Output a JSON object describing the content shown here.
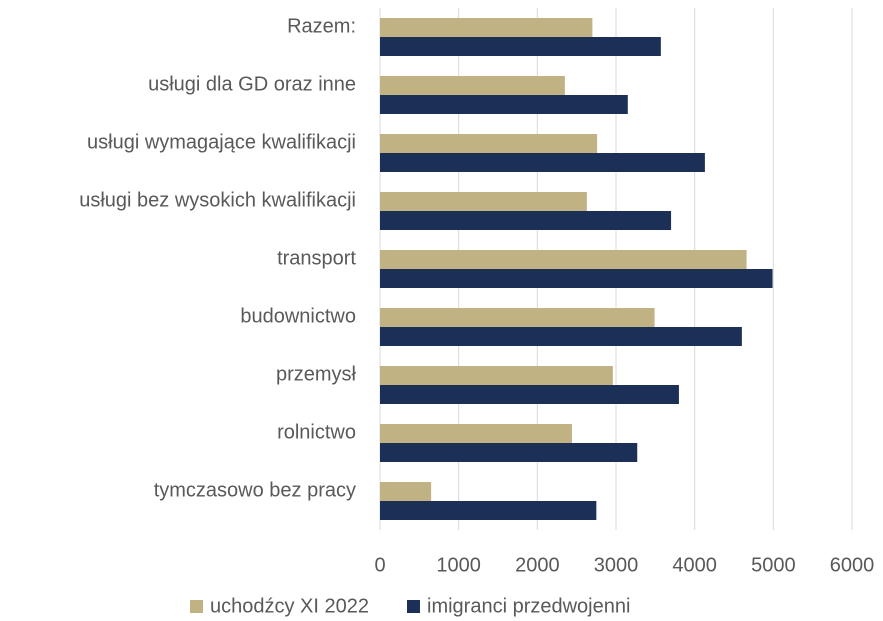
{
  "chart_data": {
    "type": "barh",
    "categories": [
      "Razem:",
      "usługi dla GD oraz inne",
      "usługi wymagające kwalifikacji",
      "usługi bez wysokich kwalifikacji",
      "transport",
      "budownictwo",
      "przemysł",
      "rolnictwo",
      "tymczasowo bez pracy"
    ],
    "series": [
      {
        "name": "uchodźcy XI 2022",
        "color": "#c1b283",
        "values": [
          2700,
          2350,
          2760,
          2630,
          4660,
          3490,
          2960,
          2440,
          650
        ]
      },
      {
        "name": "imigranci przedwojenni",
        "color": "#1b2f57",
        "values": [
          3570,
          3150,
          4130,
          3700,
          4990,
          4600,
          3800,
          3270,
          2750
        ]
      }
    ],
    "xlim": [
      0,
      6000
    ],
    "xticks": [
      0,
      1000,
      2000,
      3000,
      4000,
      5000,
      6000
    ],
    "grid": true,
    "legend": "bottom"
  }
}
